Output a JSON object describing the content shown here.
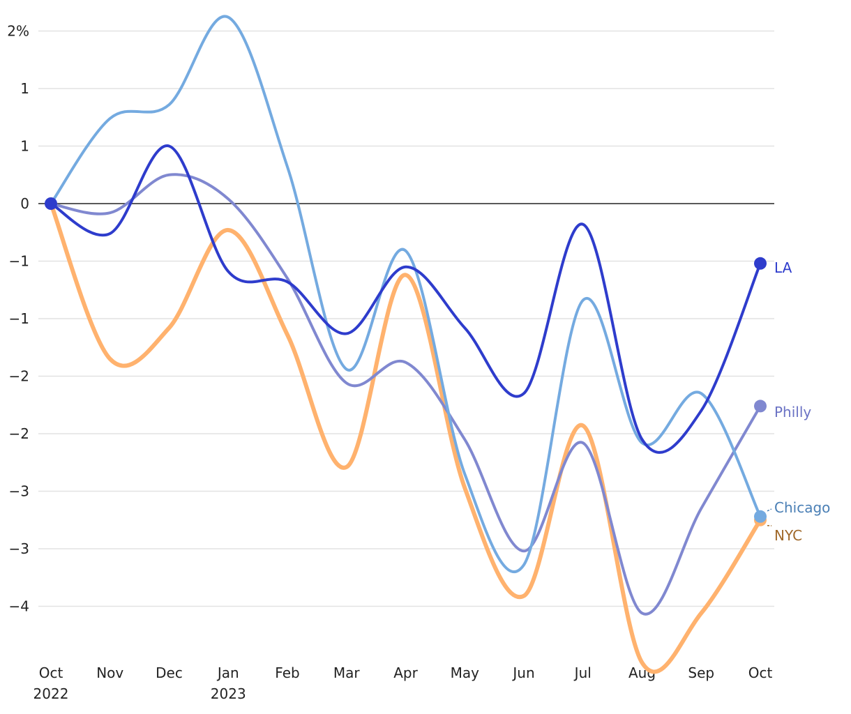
{
  "chart_data": {
    "type": "line",
    "categories": [
      "Oct",
      "Nov",
      "Dec",
      "Jan",
      "Feb",
      "Mar",
      "Apr",
      "May",
      "Jun",
      "Jul",
      "Aug",
      "Sep",
      "Oct"
    ],
    "category_years": [
      "2022",
      null,
      null,
      "2023",
      null,
      null,
      null,
      null,
      null,
      null,
      null,
      null,
      null
    ],
    "ylim": [
      -4.0,
      1.7
    ],
    "yticks": [
      {
        "value": 1.5,
        "label": "2%"
      },
      {
        "value": 1,
        "label": "1"
      },
      {
        "value": 0.5,
        "label": "1"
      },
      0,
      {
        "value": -0.5,
        "label": "−1"
      },
      {
        "value": -1,
        "label": "−1"
      },
      {
        "value": -1.5,
        "label": "−2"
      },
      {
        "value": -2,
        "label": "−2"
      },
      {
        "value": -2.5,
        "label": "−3"
      },
      {
        "value": -3,
        "label": "−3"
      },
      {
        "value": -3.5,
        "label": "−4"
      }
    ],
    "grid": true,
    "series": [
      {
        "name": "NYC",
        "color": "#ffb26e",
        "label_color": "#a0692a",
        "width": 6,
        "values": [
          0,
          -1.35,
          -1.08,
          -0.23,
          -1.14,
          -2.29,
          -0.62,
          -2.47,
          -3.41,
          -1.93,
          -3.99,
          -3.56,
          -2.75
        ]
      },
      {
        "name": "Philly",
        "color": "#8088d0",
        "label_color": "#6a72c4",
        "width": 4,
        "values": [
          0,
          -0.08,
          0.25,
          0.04,
          -0.65,
          -1.56,
          -1.38,
          -2.05,
          -3.02,
          -2.08,
          -3.56,
          -2.65,
          -1.76
        ]
      },
      {
        "name": "Chicago",
        "color": "#74aae0",
        "label_color": "#4a7fb5",
        "width": 4,
        "values": [
          0,
          0.74,
          0.86,
          1.62,
          0.32,
          -1.44,
          -0.41,
          -2.35,
          -3.14,
          -0.84,
          -2.08,
          -1.65,
          -2.72
        ]
      },
      {
        "name": "LA",
        "color": "#2e3ccc",
        "label_color": "#2e3ccc",
        "width": 4,
        "values": [
          0,
          -0.26,
          0.5,
          -0.59,
          -0.68,
          -1.13,
          -0.55,
          -1.08,
          -1.65,
          -0.18,
          -2.05,
          -1.8,
          -0.52
        ]
      }
    ]
  }
}
